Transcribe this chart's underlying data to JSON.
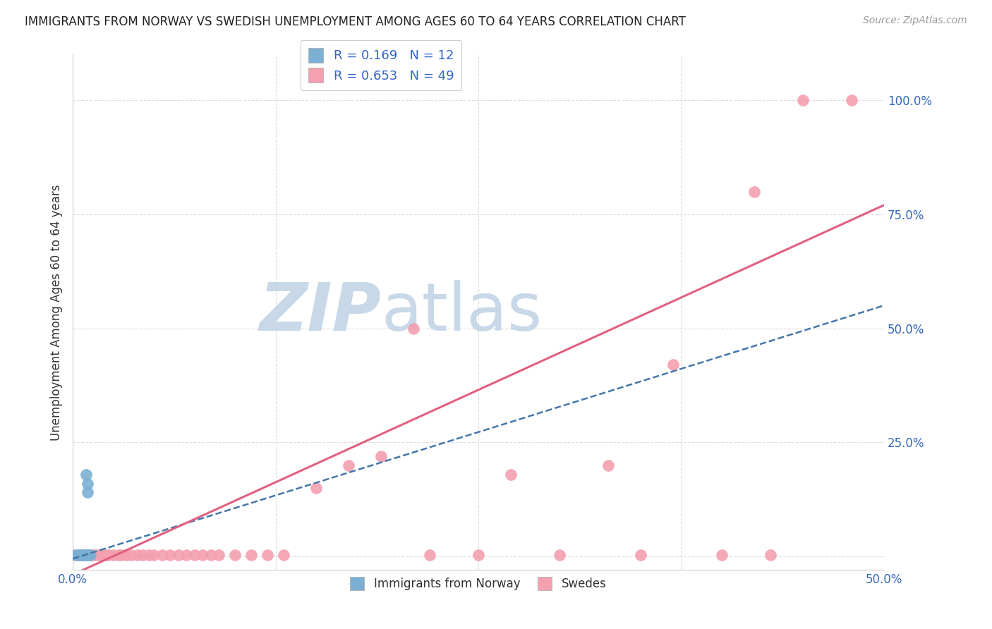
{
  "title": "IMMIGRANTS FROM NORWAY VS SWEDISH UNEMPLOYMENT AMONG AGES 60 TO 64 YEARS CORRELATION CHART",
  "source": "Source: ZipAtlas.com",
  "ylabel": "Unemployment Among Ages 60 to 64 years",
  "xlim": [
    0.0,
    0.5
  ],
  "ylim": [
    -0.03,
    1.1
  ],
  "legend_entries": [
    {
      "label": "R = 0.169   N = 12",
      "color": "#aac4e0"
    },
    {
      "label": "R = 0.653   N = 49",
      "color": "#f4a8b8"
    }
  ],
  "norway_x": [
    0.002,
    0.004,
    0.005,
    0.006,
    0.007,
    0.007,
    0.008,
    0.008,
    0.009,
    0.009,
    0.01,
    0.011
  ],
  "norway_y": [
    0.003,
    0.003,
    0.003,
    0.003,
    0.003,
    0.003,
    0.18,
    0.003,
    0.14,
    0.16,
    0.003,
    0.003
  ],
  "swedes_x": [
    0.0,
    0.003,
    0.005,
    0.007,
    0.009,
    0.01,
    0.012,
    0.014,
    0.016,
    0.018,
    0.02,
    0.022,
    0.025,
    0.028,
    0.03,
    0.033,
    0.036,
    0.04,
    0.043,
    0.047,
    0.05,
    0.055,
    0.06,
    0.065,
    0.07,
    0.075,
    0.08,
    0.085,
    0.09,
    0.1,
    0.11,
    0.12,
    0.13,
    0.15,
    0.17,
    0.19,
    0.21,
    0.22,
    0.25,
    0.27,
    0.3,
    0.33,
    0.35,
    0.37,
    0.4,
    0.42,
    0.43,
    0.45,
    0.48
  ],
  "swedes_y": [
    0.003,
    0.003,
    0.003,
    0.003,
    0.003,
    0.003,
    0.003,
    0.003,
    0.003,
    0.003,
    0.003,
    0.003,
    0.003,
    0.003,
    0.003,
    0.003,
    0.003,
    0.003,
    0.003,
    0.003,
    0.003,
    0.003,
    0.003,
    0.003,
    0.003,
    0.003,
    0.003,
    0.003,
    0.003,
    0.003,
    0.003,
    0.003,
    0.003,
    0.15,
    0.2,
    0.22,
    0.5,
    0.003,
    0.003,
    0.18,
    0.003,
    0.2,
    0.003,
    0.42,
    0.003,
    0.8,
    0.003,
    1.0,
    1.0
  ],
  "norway_color": "#7bafd4",
  "swedes_color": "#f4a0b0",
  "trend_norway_color": "#4477aa",
  "trend_swedes_color": "#e06080",
  "trend_norway_x0": 0.0,
  "trend_norway_y0": -0.005,
  "trend_norway_x1": 0.5,
  "trend_norway_y1": 0.55,
  "trend_swedes_x0": 0.0,
  "trend_swedes_y0": -0.04,
  "trend_swedes_x1": 0.5,
  "trend_swedes_y1": 0.77,
  "watermark_zip": "ZIP",
  "watermark_atlas": "atlas",
  "watermark_color_zip": "#c8d8e8",
  "watermark_color_atlas": "#c8d8e8",
  "background_color": "#ffffff",
  "grid_color": "#dddddd"
}
